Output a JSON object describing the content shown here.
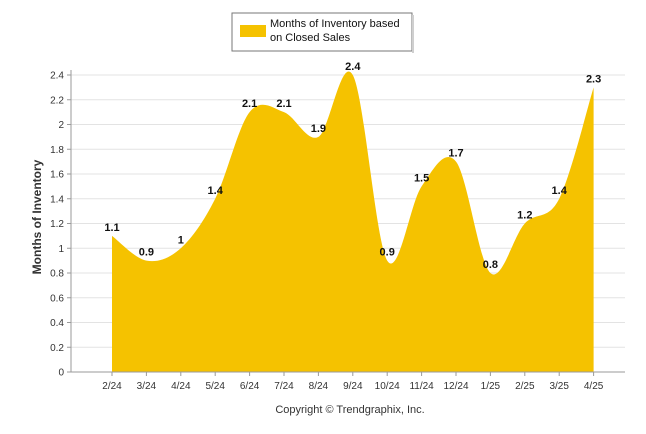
{
  "chart_data": {
    "type": "area",
    "categories": [
      "2/24",
      "3/24",
      "4/24",
      "5/24",
      "6/24",
      "7/24",
      "8/24",
      "9/24",
      "10/24",
      "11/24",
      "12/24",
      "1/25",
      "2/25",
      "3/25",
      "4/25"
    ],
    "series": [
      {
        "name": "Months of Inventory based on Closed Sales",
        "values": [
          1.1,
          0.9,
          1,
          1.4,
          2.1,
          2.1,
          1.9,
          2.4,
          0.9,
          1.5,
          1.7,
          0.8,
          1.2,
          1.4,
          2.3
        ],
        "labels": [
          "1.1",
          "0.9",
          "1",
          "1.4",
          "2.1",
          "2.1",
          "1.9",
          "2.4",
          "0.9",
          "1.5",
          "1.7",
          "0.8",
          "1.2",
          "1.4",
          "2.3"
        ]
      }
    ],
    "ylabel": "Months of Inventory",
    "xlabel": "",
    "ylim": [
      0,
      2.4
    ],
    "yticks": [
      0,
      0.2,
      0.4,
      0.6,
      0.8,
      1,
      1.2,
      1.4,
      1.6,
      1.8,
      2,
      2.2,
      2.4
    ],
    "ytick_labels": [
      "0",
      "0.2",
      "0.4",
      "0.6",
      "0.8",
      "1",
      "1.2",
      "1.4",
      "1.6",
      "1.8",
      "2",
      "2.2",
      "2.4"
    ],
    "grid": true,
    "legend_position": "top-center",
    "legend_lines": [
      "Months of Inventory based",
      "on Closed Sales"
    ],
    "color": "#f5c200"
  },
  "footer": {
    "copyright": "Copyright © Trendgraphix, Inc."
  }
}
